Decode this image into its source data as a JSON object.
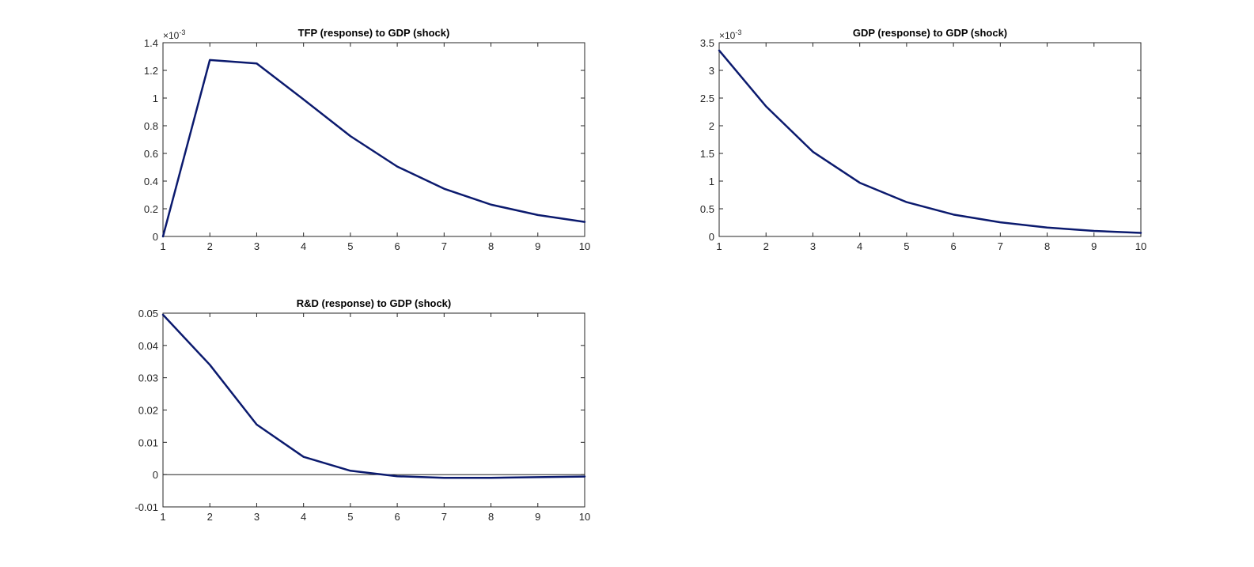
{
  "colors": {
    "line": "#0b1a6e",
    "axis": "#262626",
    "zero_line": "#000000",
    "background": "#ffffff"
  },
  "chart_data": [
    {
      "type": "line",
      "title": "TFP (response) to GDP (shock)",
      "x": [
        1,
        2,
        3,
        4,
        5,
        6,
        7,
        8,
        9,
        10
      ],
      "series": [
        {
          "values": [
            0.0,
            1.275,
            1.25,
            0.99,
            0.725,
            0.505,
            0.345,
            0.23,
            0.155,
            0.105
          ]
        }
      ],
      "xlim": [
        1,
        10
      ],
      "ylim": [
        0,
        1.4
      ],
      "xticks": [
        "1",
        "2",
        "3",
        "4",
        "5",
        "6",
        "7",
        "8",
        "9",
        "10"
      ],
      "yticks": [
        "0",
        "0.2",
        "0.4",
        "0.6",
        "0.8",
        "1",
        "1.2",
        "1.4"
      ],
      "exponent_label": "×10",
      "exponent": "-3",
      "zero_line": false,
      "grid": false
    },
    {
      "type": "line",
      "title": "GDP (response) to GDP (shock)",
      "x": [
        1,
        2,
        3,
        4,
        5,
        6,
        7,
        8,
        9,
        10
      ],
      "series": [
        {
          "values": [
            3.36,
            2.35,
            1.53,
            0.97,
            0.62,
            0.395,
            0.255,
            0.16,
            0.1,
            0.065
          ]
        }
      ],
      "xlim": [
        1,
        10
      ],
      "ylim": [
        0,
        3.5
      ],
      "xticks": [
        "1",
        "2",
        "3",
        "4",
        "5",
        "6",
        "7",
        "8",
        "9",
        "10"
      ],
      "yticks": [
        "0",
        "0.5",
        "1",
        "1.5",
        "2",
        "2.5",
        "3",
        "3.5"
      ],
      "exponent_label": "×10",
      "exponent": "-3",
      "zero_line": false,
      "grid": false
    },
    {
      "type": "line",
      "title": "R&D (response) to GDP (shock)",
      "x": [
        1,
        2,
        3,
        4,
        5,
        6,
        7,
        8,
        9,
        10
      ],
      "series": [
        {
          "values": [
            0.0495,
            0.034,
            0.0155,
            0.0055,
            0.0012,
            -0.0005,
            -0.001,
            -0.001,
            -0.0008,
            -0.0006
          ]
        }
      ],
      "xlim": [
        1,
        10
      ],
      "ylim": [
        -0.01,
        0.05
      ],
      "xticks": [
        "1",
        "2",
        "3",
        "4",
        "5",
        "6",
        "7",
        "8",
        "9",
        "10"
      ],
      "yticks": [
        "-0.01",
        "0",
        "0.01",
        "0.02",
        "0.03",
        "0.04",
        "0.05"
      ],
      "exponent_label": "",
      "exponent": "",
      "zero_line": true,
      "grid": false
    }
  ]
}
